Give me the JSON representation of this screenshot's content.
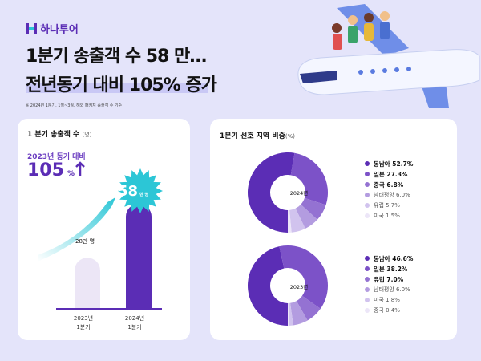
{
  "brand": {
    "name": "하나투어",
    "color": "#5b2db5"
  },
  "headline": {
    "line1": "1분기 송출객 수 58 만…",
    "line2": "전년동기 대비 105% 증가"
  },
  "footnote": "※ 2024년 1분기, 1월~3월, 해외 패키지 송출객 수 기준",
  "left_card": {
    "title": "1 분기 송출객 수",
    "unit": "(명)",
    "compare_label": "2023년 동기 대비",
    "growth_value": "105",
    "growth_unit": "%",
    "arrow": "arrow-up-icon",
    "highlight_value": "58",
    "highlight_unit": "만 명",
    "value_2023_label": "28만 명"
  },
  "right_card": {
    "title": "1분기 선호 지역 비중",
    "unit": "(%)"
  },
  "chart_data": [
    {
      "type": "bar",
      "categories": [
        "2023년\n1분기",
        "2024년\n1분기"
      ],
      "category_lines": [
        [
          "2023년",
          "1분기"
        ],
        [
          "2024년",
          "1분기"
        ]
      ],
      "values": [
        28,
        58
      ],
      "unit": "만 명",
      "colors": [
        "#ece6f6",
        "#5b2db5"
      ]
    },
    {
      "type": "pie",
      "center_label": "2024년",
      "slices": [
        {
          "label": "동남아",
          "value": 52.7,
          "color": "#5b2db5",
          "text": "동남아 52.7%"
        },
        {
          "label": "일본",
          "value": 27.3,
          "color": "#7c52c8",
          "text": "일본 27.3%"
        },
        {
          "label": "중국",
          "value": 6.8,
          "color": "#9472d2",
          "text": "중국 6.8%"
        },
        {
          "label": "남태평양",
          "value": 6.0,
          "color": "#b39ce0",
          "text": "남태평양 6.0%"
        },
        {
          "label": "유럽",
          "value": 5.7,
          "color": "#d1c3ee",
          "text": "유럽 5.7%"
        },
        {
          "label": "미국",
          "value": 1.5,
          "color": "#ece6f8",
          "text": "미국 1.5%"
        }
      ]
    },
    {
      "type": "pie",
      "center_label": "2023년",
      "slices": [
        {
          "label": "동남아",
          "value": 46.6,
          "color": "#5b2db5",
          "text": "동남아 46.6%"
        },
        {
          "label": "일본",
          "value": 38.2,
          "color": "#7c52c8",
          "text": "일본 38.2%"
        },
        {
          "label": "유럽",
          "value": 7.0,
          "color": "#9472d2",
          "text": "유럽 7.0%"
        },
        {
          "label": "남태평양",
          "value": 6.0,
          "color": "#b39ce0",
          "text": "남태평양 6.0%"
        },
        {
          "label": "미국",
          "value": 1.8,
          "color": "#d1c3ee",
          "text": "미국 1.8%"
        },
        {
          "label": "중국",
          "value": 0.4,
          "color": "#ece6f8",
          "text": "중국 0.4%"
        }
      ]
    }
  ]
}
